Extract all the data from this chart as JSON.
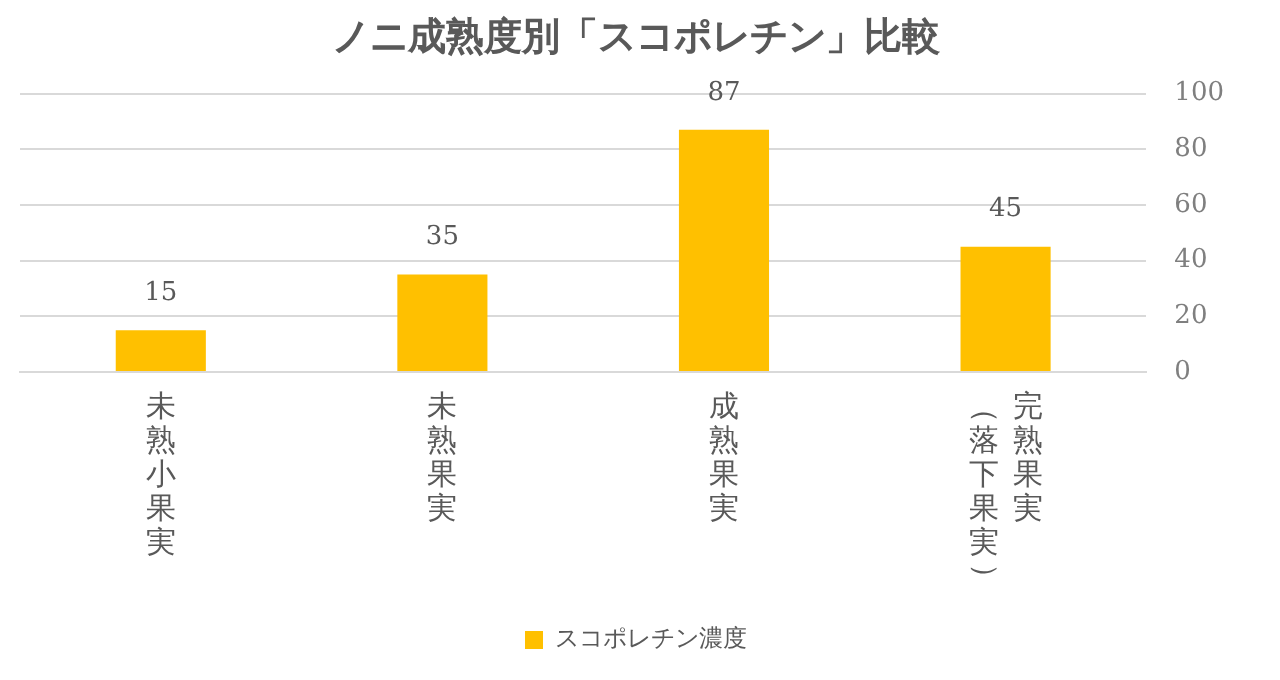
{
  "chart_data": {
    "type": "bar",
    "title": "ノニ成熟度別「スコポレチン」比較",
    "categories": [
      "未熟小果実",
      "未熟果実",
      "成熟果実",
      "完熟果実（落下果実）"
    ],
    "series": [
      {
        "name": "スコポレチン濃度",
        "color": "#ffc000",
        "values": [
          15,
          35,
          87,
          45
        ]
      }
    ],
    "ylim": [
      0,
      100
    ],
    "yticks": [
      0,
      20,
      40,
      60,
      80,
      100
    ],
    "grid": "y",
    "legend": "bottom",
    "data_labels": true
  }
}
